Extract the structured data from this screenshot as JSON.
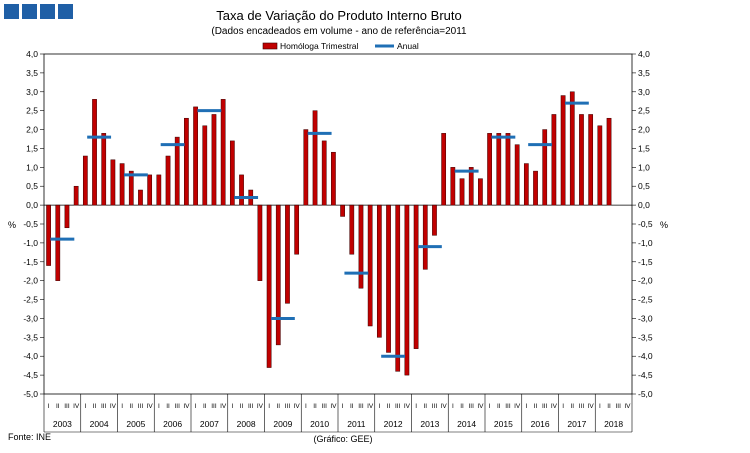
{
  "header": {
    "title": "Taxa de Variação do Produto Interno Bruto",
    "subtitle": "(Dados encadeados em volume  - ano de referência=2011"
  },
  "footer": {
    "source": "Fonte: INE",
    "credit": "(Gráfico: GEE)"
  },
  "colors": {
    "bar": "#c00000",
    "bar_edge": "#3a0000",
    "line": "#1f6fb5",
    "logo": "#1f5fa6"
  },
  "chart_data": {
    "type": "bar",
    "title": "Taxa de Variação do Produto Interno Bruto",
    "subtitle": "(Dados encadeados em volume  - ano de referência=2011",
    "ylabel_left": "%",
    "ylabel_right": "%",
    "ylim": [
      -5.0,
      4.0
    ],
    "ytick_step": 0.5,
    "grid": false,
    "legend_position": "top-center",
    "legend": [
      "Homóloga Trimestral",
      "Anual"
    ],
    "quarter_labels": [
      "I",
      "II",
      "III",
      "IV"
    ],
    "years": [
      "2003",
      "2004",
      "2005",
      "2006",
      "2007",
      "2008",
      "2009",
      "2010",
      "2011",
      "2012",
      "2013",
      "2014",
      "2015",
      "2016",
      "2017",
      "2018"
    ],
    "series": [
      {
        "name": "Homóloga Trimestral",
        "kind": "bar",
        "values": [
          -1.6,
          -2.0,
          -0.6,
          0.5,
          1.3,
          2.8,
          1.9,
          1.2,
          1.1,
          0.9,
          0.4,
          0.8,
          0.8,
          1.3,
          1.8,
          2.3,
          2.6,
          2.1,
          2.4,
          2.8,
          1.7,
          0.8,
          0.4,
          -2.0,
          -4.3,
          -3.7,
          -2.6,
          -1.3,
          2.0,
          2.5,
          1.7,
          1.4,
          -0.3,
          -1.3,
          -2.2,
          -3.2,
          -3.5,
          -3.9,
          -4.4,
          -4.5,
          -3.8,
          -1.7,
          -0.8,
          1.9,
          1.0,
          0.7,
          1.0,
          0.7,
          1.9,
          1.9,
          1.9,
          1.6,
          1.1,
          0.9,
          2.0,
          2.4,
          2.9,
          3.0,
          2.4,
          2.4,
          2.1,
          2.3
        ]
      },
      {
        "name": "Anual",
        "kind": "annual-line",
        "values": [
          -0.9,
          1.8,
          0.8,
          1.6,
          2.5,
          0.2,
          -3.0,
          1.9,
          -1.8,
          -4.0,
          -1.1,
          0.9,
          1.8,
          1.6,
          2.7
        ]
      }
    ]
  }
}
